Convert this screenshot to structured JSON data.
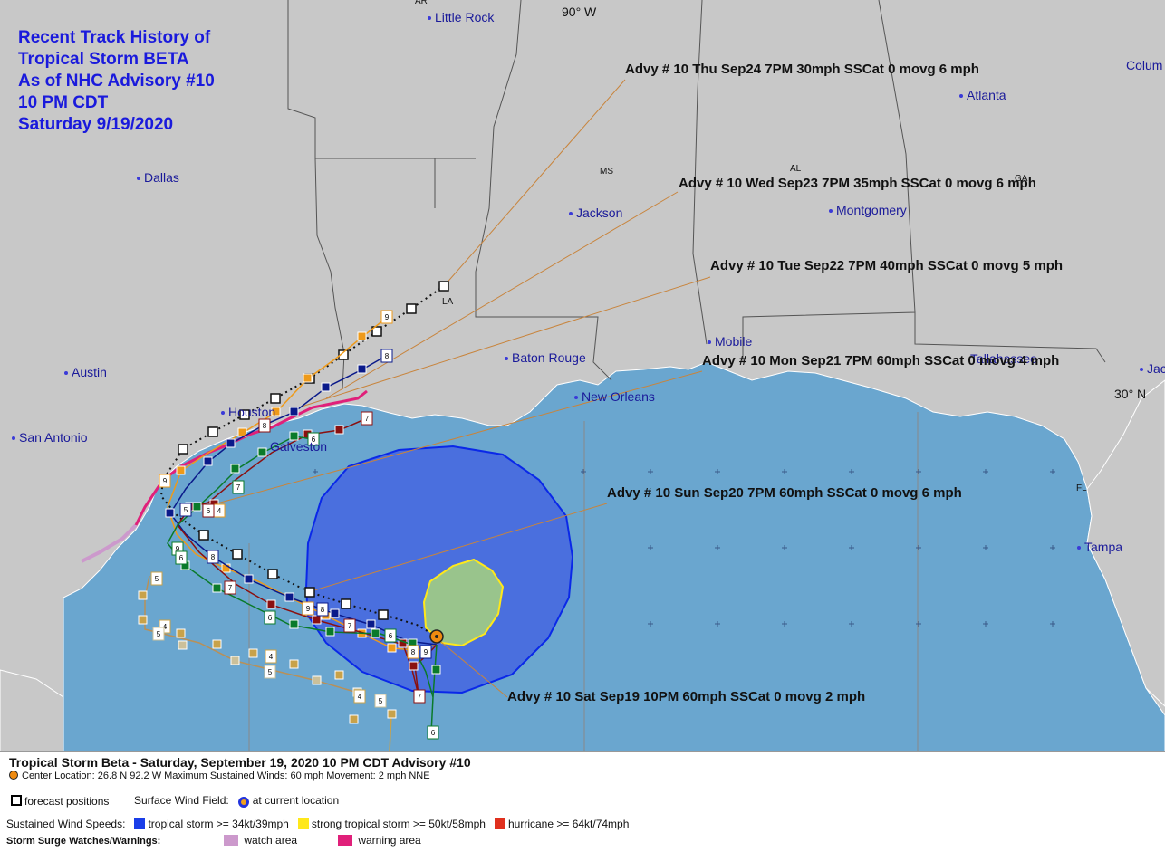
{
  "title_lines": [
    "Recent Track History of",
    "Tropical Storm BETA",
    "As of NHC Advisory #10",
    "10 PM CDT",
    "Saturday 9/19/2020"
  ],
  "cities": [
    {
      "id": "little-rock",
      "name": "Little Rock"
    },
    {
      "id": "dallas",
      "name": "Dallas"
    },
    {
      "id": "jackson",
      "name": "Jackson"
    },
    {
      "id": "montgomery",
      "name": "Montgomery"
    },
    {
      "id": "atlanta",
      "name": "Atlanta"
    },
    {
      "id": "columbia",
      "name": "Colum"
    },
    {
      "id": "austin",
      "name": "Austin"
    },
    {
      "id": "san-antonio",
      "name": "San Antonio"
    },
    {
      "id": "houston",
      "name": "Houston"
    },
    {
      "id": "galveston",
      "name": "Galveston"
    },
    {
      "id": "baton-rouge",
      "name": "Baton Rouge"
    },
    {
      "id": "new-orleans",
      "name": "New Orleans"
    },
    {
      "id": "mobile",
      "name": "Mobile"
    },
    {
      "id": "tallahassee",
      "name": "Tallahassee"
    },
    {
      "id": "jacksonville",
      "name": "Jac"
    },
    {
      "id": "tampa",
      "name": "Tampa"
    }
  ],
  "states": [
    "AR",
    "MS",
    "AL",
    "GA",
    "LA",
    "FL"
  ],
  "coords": {
    "lon": "90° W",
    "lat": "30° N"
  },
  "advisories": [
    {
      "id": "sep24",
      "text": "Advy # 10 Thu Sep24 7PM  30mph SSCat 0 movg 6 mph"
    },
    {
      "id": "sep23",
      "text": "Advy # 10 Wed Sep23 7PM  35mph SSCat 0 movg 6 mph"
    },
    {
      "id": "sep22",
      "text": "Advy # 10 Tue Sep22 7PM  40mph SSCat 0 movg 5 mph"
    },
    {
      "id": "sep21",
      "text": "Advy # 10 Mon Sep21 7PM  60mph SSCat 0 movg 4 mph"
    },
    {
      "id": "sep20",
      "text": "Advy # 10 Sun Sep20 7PM  60mph SSCat 0 movg 6 mph"
    },
    {
      "id": "sep19",
      "text": "Advy # 10 Sat Sep19 10PM  60mph SSCat 0 movg 2 mph"
    }
  ],
  "legend": {
    "title": "Tropical Storm Beta  -  Saturday, September 19, 2020  10 PM CDT   Advisory #10",
    "center": "Center Location: 26.8 N  92.2 W   Maximum Sustained Winds: 60 mph   Movement: 2 mph NNE",
    "forecast_positions": "forecast positions",
    "surface_wind_field": "Surface Wind Field:",
    "at_current_location": "at current location",
    "sustained_wind_speeds": "Sustained Wind Speeds:",
    "ts_label": "tropical storm >= 34kt/39mph",
    "sts_label": "strong tropical storm >= 50kt/58mph",
    "hur_label": "hurricane >= 64kt/74mph",
    "surge_label": "Storm Surge Watches/Warnings:",
    "watch_label": "watch area",
    "warning_label": "warning area"
  },
  "colors": {
    "land": "#c8c8c8",
    "water": "#6aa6cf",
    "ts": "#1a3ee8",
    "sts": "#ffe81a",
    "hurricane": "#e0301e",
    "watch": "#cc99cc",
    "warning": "#e0207a",
    "title": "#1a1adc"
  },
  "storm": {
    "name": "Tropical Storm Beta",
    "center_lat": 26.8,
    "center_lon": -92.2,
    "max_winds_mph": 60,
    "movement": "2 mph NNE"
  }
}
